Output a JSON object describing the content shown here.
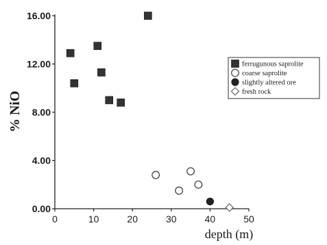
{
  "chart_data": {
    "type": "scatter",
    "title": "",
    "xlabel": "depth (m)",
    "ylabel": "% NiO",
    "xlim": [
      0,
      50
    ],
    "ylim": [
      0,
      16
    ],
    "x_ticks": [
      "0",
      "10",
      "20",
      "30",
      "40",
      "50"
    ],
    "y_ticks": [
      "0.00",
      "4.00",
      "8.00",
      "12.00",
      "16.00"
    ],
    "grid": false,
    "legend_position": "right",
    "series": [
      {
        "name": "ferrugunous saprolite",
        "marker": "filled-square",
        "color": "#333333",
        "points": [
          {
            "x": 4,
            "y": 12.9
          },
          {
            "x": 5,
            "y": 10.4
          },
          {
            "x": 11,
            "y": 13.5
          },
          {
            "x": 12,
            "y": 11.3
          },
          {
            "x": 14,
            "y": 9.0
          },
          {
            "x": 17,
            "y": 8.8
          },
          {
            "x": 24,
            "y": 16.0
          }
        ]
      },
      {
        "name": "coarse saprolite",
        "marker": "open-circle",
        "color": "#333333",
        "points": [
          {
            "x": 26,
            "y": 2.8
          },
          {
            "x": 32,
            "y": 1.5
          },
          {
            "x": 35,
            "y": 3.1
          },
          {
            "x": 37,
            "y": 2.0
          }
        ]
      },
      {
        "name": "slightly altered ore",
        "marker": "filled-circle",
        "color": "#222222",
        "points": [
          {
            "x": 40,
            "y": 0.6
          }
        ]
      },
      {
        "name": "fresh rock",
        "marker": "open-diamond",
        "color": "#555555",
        "points": [
          {
            "x": 45,
            "y": 0.1
          }
        ]
      }
    ]
  }
}
